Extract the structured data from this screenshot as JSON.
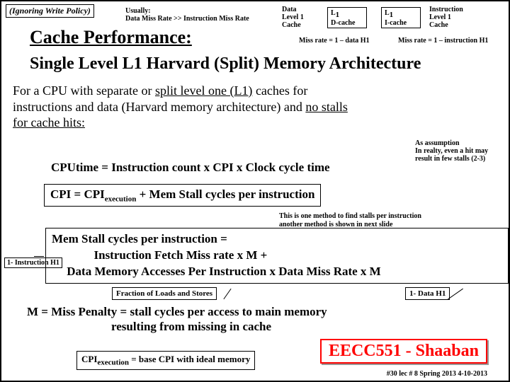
{
  "top_note": "(Ignoring Write Policy)",
  "usually": {
    "l1": "Usually:",
    "l2": "Data Miss Rate >> Instruction Miss Rate"
  },
  "data_cache_label": {
    "l1": "Data",
    "l2": "Level 1",
    "l3": "Cache"
  },
  "dcache": {
    "l1": "L",
    "sub": "1",
    "l2": "D-cache"
  },
  "icache": {
    "l1": "L",
    "sub": "1",
    "l2": "I-cache"
  },
  "instr_cache_label": {
    "l1": "Instruction",
    "l2": "Level 1",
    "l3": "Cache"
  },
  "mr_data": "Miss rate = 1 – data H1",
  "mr_instr": "Miss rate = 1 – instruction H1",
  "title1": "Cache Performance:",
  "title2": "Single Level L1 Harvard  (Split) Memory Architecture",
  "body_l1": "For a CPU with separate or ",
  "body_l1u": "split level  one (L1)",
  "body_l1b": "  caches for",
  "body_l2": "instructions and data  (Harvard memory architecture)  and ",
  "body_l2u": "no stalls",
  "body_l3u": "for cache hits:",
  "cpu_time": "CPUtime  =   Instruction count x  CPI  x  Clock cycle time",
  "cpi_eq_pre": "CPI =    CPI",
  "cpi_eq_sub": "execution",
  "cpi_eq_post": "  +   Mem Stall cycles per instruction",
  "assumption": {
    "l1": "As assumption",
    "l2": "In realty, even a hit may result in few stalls (2-3)"
  },
  "method_note": {
    "l1": "This is one method to find stalls per instruction",
    "l2": "another method is shown in next slide"
  },
  "mem_l1": "Mem Stall  cycles per instruction =",
  "mem_l2": "Instruction Fetch Miss rate x M  +",
  "mem_l3": "Data Memory Accesses Per Instruction x Data Miss Rate x M",
  "instr_h1": "1- Instruction H1",
  "frac_box": "Fraction of Loads and Stores",
  "data_h1": "1- Data H1",
  "miss_penalty_l1": "M  =  Miss Penalty = stall cycles per access to main memory",
  "miss_penalty_l2": "resulting from missing in cache",
  "base_cpi_pre": "CPI",
  "base_cpi_sub": "execution",
  "base_cpi_post": " =  base CPI with ideal memory",
  "eecc": "EECC551 - Shaaban",
  "footer": "#30   lec # 8    Spring 2013  4-10-2013"
}
